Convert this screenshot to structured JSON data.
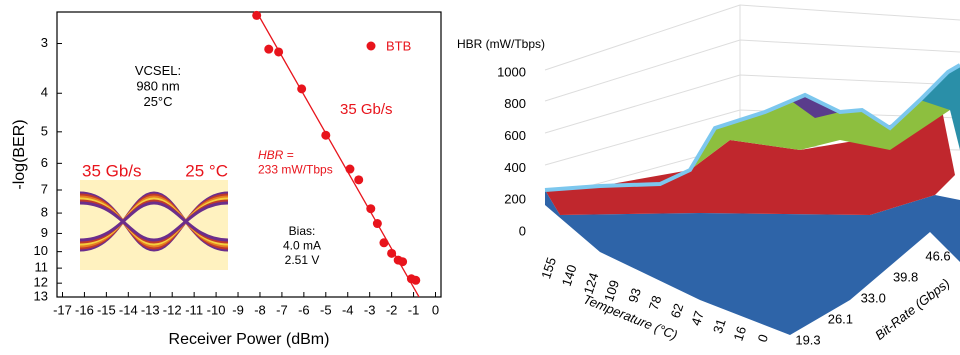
{
  "chart_data": [
    {
      "type": "scatter",
      "xlabel": "Receiver Power (dBm)",
      "ylabel": "-log(BER)",
      "xlim": [
        -17.25,
        0.25
      ],
      "xticks": [
        -17,
        -16,
        -15,
        -14,
        -13,
        -12,
        -11,
        -10,
        -9,
        -8,
        -7,
        -6,
        -5,
        -4,
        -3,
        -2,
        -1,
        0
      ],
      "ylim": [
        2.5,
        13
      ],
      "yticks": [
        3,
        4,
        5,
        6,
        7,
        8,
        9,
        10,
        11,
        12,
        13
      ],
      "y_log": true,
      "y_reversed": true,
      "legend": "upper right",
      "series": [
        {
          "name": "BTB",
          "color": "#e8141c",
          "x": [
            -8.15,
            -7.6,
            -7.15,
            -6.1,
            -5.0,
            -3.9,
            -3.5,
            -2.95,
            -2.65,
            -2.35,
            -2.0,
            -1.7,
            -1.5,
            -1.1,
            -0.9
          ],
          "values": [
            2.55,
            3.1,
            3.15,
            3.9,
            5.1,
            6.2,
            6.6,
            7.8,
            8.5,
            9.5,
            10.1,
            10.5,
            10.6,
            11.7,
            11.8
          ]
        }
      ],
      "fit": {
        "x": [
          -8.15,
          -0.75
        ],
        "values": [
          2.5,
          13
        ],
        "color": "#e8141c"
      },
      "annotations": [
        {
          "lines": [
            "VCSEL:",
            "980 nm",
            "25°C"
          ],
          "color": "#000000"
        },
        {
          "lines": [
            "35 Gb/s"
          ],
          "color": "#e8141c"
        },
        {
          "lines": [
            "HBR =",
            "233 mW/Tbps"
          ],
          "color": "#e8141c"
        },
        {
          "lines": [
            "Bias:",
            "4.0 mA",
            "2.51 V"
          ],
          "color": "#000000"
        }
      ],
      "inset": {
        "labels": [
          "35 Gb/s",
          "25 °C"
        ]
      }
    },
    {
      "type": "surface",
      "zlabel": "HBR (mW/Tbps)",
      "zlim": [
        0,
        1000
      ],
      "zticks": [
        0,
        200,
        400,
        600,
        800,
        1000
      ],
      "xlabel": "Temperature (°C)",
      "xlim": [
        155,
        0
      ],
      "xticks": [
        155,
        140,
        124,
        109,
        93,
        78,
        62,
        47,
        31,
        16,
        0
      ],
      "ylabel": "Bit-Rate (Gbps)",
      "ylim": [
        19.3,
        46.6
      ],
      "yticks": [
        19.3,
        26.1,
        {
          "value": 33,
          "label": "33.0"
        },
        39.8,
        46.6
      ]
    }
  ]
}
